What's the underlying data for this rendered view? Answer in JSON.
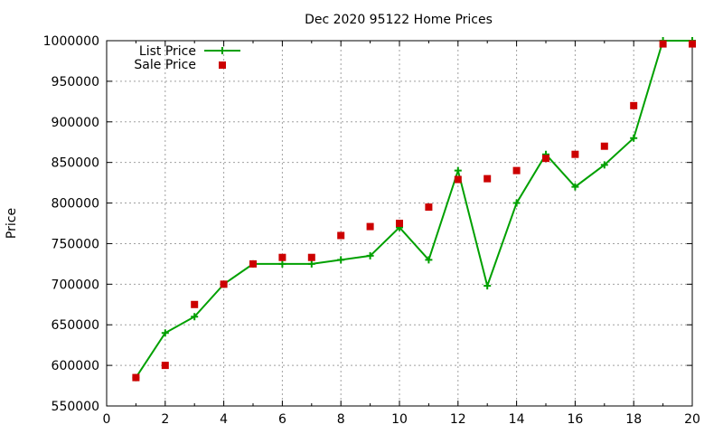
{
  "chart_data": {
    "type": "line",
    "title": "Dec 2020 95122 Home Prices",
    "xlabel": "",
    "ylabel": "Price",
    "xlim": [
      0,
      20
    ],
    "ylim": [
      550000,
      1000000
    ],
    "x_ticks": [
      0,
      2,
      4,
      6,
      8,
      10,
      12,
      14,
      16,
      18,
      20
    ],
    "y_ticks": [
      550000,
      600000,
      650000,
      700000,
      750000,
      800000,
      850000,
      900000,
      950000,
      1000000
    ],
    "grid": true,
    "legend_position": "top-left",
    "series": [
      {
        "name": "List Price",
        "type": "line",
        "color": "#00a000",
        "marker": "plus",
        "x": [
          1,
          2,
          3,
          4,
          5,
          6,
          7,
          8,
          9,
          10,
          11,
          12,
          13,
          14,
          15,
          16,
          17,
          18,
          19,
          20
        ],
        "y": [
          585000,
          640000,
          660000,
          700000,
          725000,
          725000,
          725000,
          730000,
          735000,
          770000,
          730000,
          840000,
          698000,
          800000,
          860000,
          820000,
          847000,
          880000,
          1000000,
          1000000
        ]
      },
      {
        "name": "Sale Price",
        "type": "scatter",
        "color": "#cc0000",
        "marker": "square",
        "x": [
          1,
          2,
          3,
          4,
          5,
          6,
          7,
          8,
          9,
          10,
          11,
          12,
          13,
          14,
          15,
          16,
          17,
          18,
          19,
          20
        ],
        "y": [
          585000,
          600000,
          675000,
          700000,
          725000,
          733000,
          733000,
          760000,
          771000,
          775000,
          795000,
          829000,
          830000,
          840000,
          855000,
          860000,
          870000,
          920000,
          996000,
          996000
        ]
      }
    ]
  }
}
